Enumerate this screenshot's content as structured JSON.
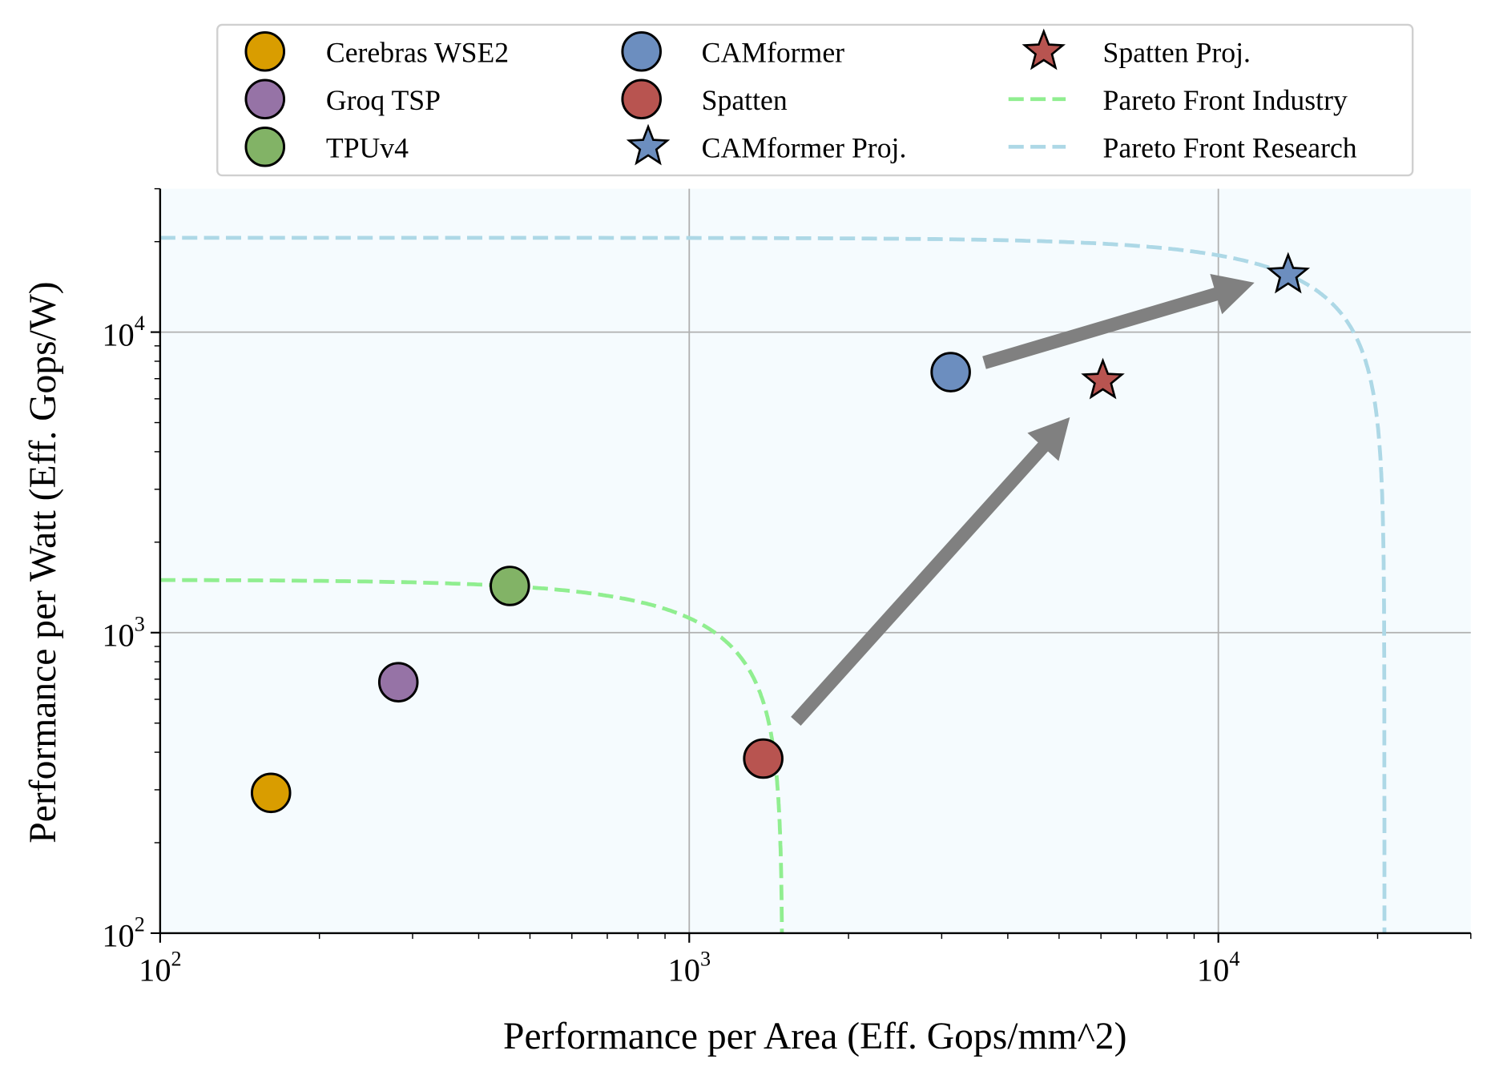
{
  "chart_data": {
    "type": "scatter",
    "title": "",
    "xlabel": "Performance per Area (Eff. Gops/mm^2)",
    "ylabel": "Performance per Watt (Eff. Gops/W)",
    "xscale": "log",
    "yscale": "log",
    "xlim": [
      100,
      30000
    ],
    "ylim": [
      100,
      30000
    ],
    "grid": true,
    "legend_placement": "top-center, above plot",
    "x_ticks": [
      {
        "value": 100,
        "base": "10",
        "exp": "2"
      },
      {
        "value": 1000,
        "base": "10",
        "exp": "3"
      },
      {
        "value": 10000,
        "base": "10",
        "exp": "4"
      }
    ],
    "y_ticks": [
      {
        "value": 100,
        "base": "10",
        "exp": "2"
      },
      {
        "value": 1000,
        "base": "10",
        "exp": "3"
      },
      {
        "value": 10000,
        "base": "10",
        "exp": "4"
      }
    ],
    "series": [
      {
        "name": "Cerebras WSE2",
        "marker": "circle",
        "color": "#d99d00",
        "x": 162,
        "y": 293
      },
      {
        "name": "Groq TSP",
        "marker": "circle",
        "color": "#9673a6",
        "x": 282,
        "y": 684
      },
      {
        "name": "TPUv4",
        "marker": "circle",
        "color": "#82b366",
        "x": 458,
        "y": 1430
      },
      {
        "name": "CAMformer",
        "marker": "circle",
        "color": "#6c8ebf",
        "x": 3120,
        "y": 7360
      },
      {
        "name": "Spatten",
        "marker": "circle",
        "color": "#b85450",
        "x": 1380,
        "y": 381
      },
      {
        "name": "CAMformer Proj.",
        "marker": "star",
        "color": "#6c8ebf",
        "x": 13550,
        "y": 15500
      },
      {
        "name": "Spatten Proj.",
        "marker": "star",
        "color": "#b85450",
        "x": 6050,
        "y": 6890
      }
    ],
    "pareto_fronts": [
      {
        "name": "Pareto Front Industry",
        "color": "#90ee90",
        "shape": "quarter-circle x^2+y^2=r^2",
        "radius": 1500
      },
      {
        "name": "Pareto Front Research",
        "color": "#add8e6",
        "shape": "quarter-circle x^2+y^2=r^2",
        "radius": 20600
      }
    ],
    "arrows": [
      {
        "from": [
          1590,
          507
        ],
        "to": [
          5240,
          5210
        ],
        "color": "#808080"
      },
      {
        "from": [
          3610,
          7910
        ],
        "to": [
          11700,
          14600
        ],
        "color": "#808080"
      }
    ],
    "legend_order": [
      "Cerebras WSE2",
      "Groq TSP",
      "TPUv4",
      "CAMformer",
      "Spatten",
      "CAMformer Proj.",
      "Spatten Proj.",
      "Pareto Front Industry",
      "Pareto Front Research"
    ]
  }
}
